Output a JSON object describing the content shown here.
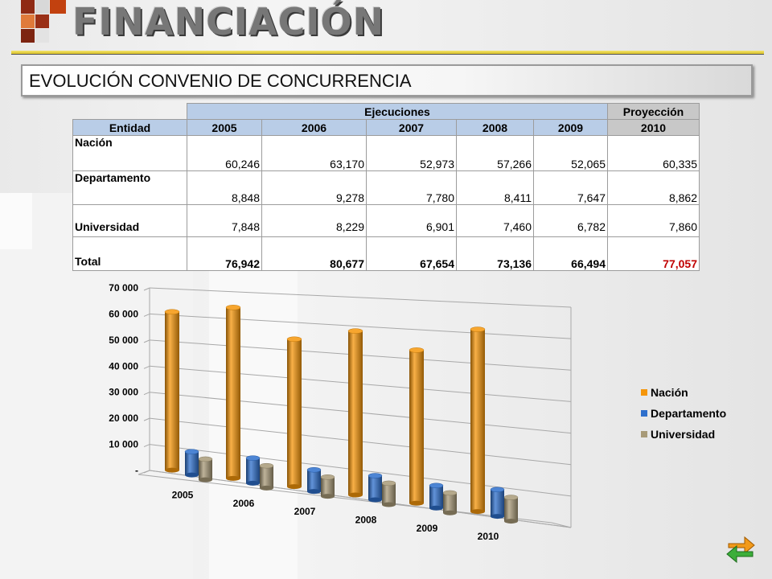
{
  "header": {
    "title": "FINANCIACIÓN",
    "subtitle": "EVOLUCIÓN CONVENIO DE CONCURRENCIA",
    "accent": "#e0c930"
  },
  "table": {
    "group_headers": {
      "ejecuciones": "Ejecuciones",
      "proyeccion": "Proyección"
    },
    "columns": [
      "Entidad",
      "2005",
      "2006",
      "2007",
      "2008",
      "2009",
      "2010"
    ],
    "rows": [
      {
        "entidad": "Nación",
        "values": [
          "60,246",
          "63,170",
          "52,973",
          "57,266",
          "52,065",
          "60,335"
        ]
      },
      {
        "entidad": "Departamento",
        "values": [
          "8,848",
          "9,278",
          "7,780",
          "8,411",
          "7,647",
          "8,862"
        ]
      },
      {
        "entidad": "Universidad",
        "values": [
          "7,848",
          "8,229",
          "6,901",
          "7,460",
          "6,782",
          "7,860"
        ]
      },
      {
        "entidad": "Total",
        "values": [
          "76,942",
          "80,677",
          "67,654",
          "73,136",
          "66,494",
          "77,057"
        ]
      }
    ]
  },
  "chart_data": {
    "type": "bar",
    "categories": [
      "2005",
      "2006",
      "2007",
      "2008",
      "2009",
      "2010"
    ],
    "series": [
      {
        "name": "Nación",
        "values": [
          60246,
          63170,
          52973,
          57266,
          52065,
          60335
        ],
        "color": "#f5960a"
      },
      {
        "name": "Departamento",
        "values": [
          8848,
          9278,
          7780,
          8411,
          7647,
          8862
        ],
        "color": "#2e6fcc"
      },
      {
        "name": "Universidad",
        "values": [
          7848,
          8229,
          6901,
          7460,
          6782,
          7860
        ],
        "color": "#a89a78"
      }
    ],
    "ylim": [
      0,
      70000
    ],
    "yticks": [
      "-",
      "10 000",
      "20 000",
      "30 000",
      "40 000",
      "50 000",
      "60 000",
      "70 000"
    ],
    "legend_position": "right",
    "grid": true,
    "style": "3d-cylinder"
  },
  "nav": {
    "icon": "refresh-arrows-icon"
  }
}
